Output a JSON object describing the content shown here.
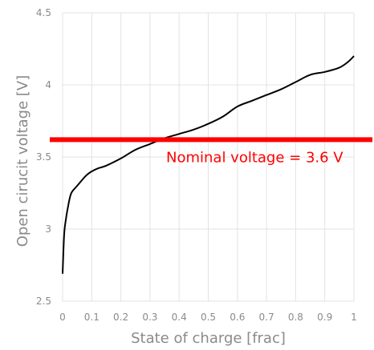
{
  "chart_data": {
    "type": "line",
    "xlabel": "State of charge [frac]",
    "ylabel": "Open cirucit voltage [V]",
    "xlim": [
      0,
      1
    ],
    "ylim": [
      2.5,
      4.5
    ],
    "x_ticks": [
      "0",
      "0.1",
      "0.2",
      "0.3",
      "0.4",
      "0.5",
      "0.6",
      "0.7",
      "0.8",
      "0.9",
      "1"
    ],
    "y_ticks": [
      "2.5",
      "3",
      "3.5",
      "4",
      "4.5"
    ],
    "grid": true,
    "series": [
      {
        "color": "#000000",
        "x": [
          0,
          0.005,
          0.01,
          0.02,
          0.03,
          0.05,
          0.08,
          0.1,
          0.12,
          0.15,
          0.2,
          0.25,
          0.3,
          0.35,
          0.4,
          0.45,
          0.5,
          0.55,
          0.6,
          0.65,
          0.7,
          0.75,
          0.8,
          0.85,
          0.9,
          0.95,
          0.98,
          1.0
        ],
        "y": [
          2.69,
          2.95,
          3.05,
          3.17,
          3.25,
          3.3,
          3.37,
          3.4,
          3.42,
          3.44,
          3.49,
          3.55,
          3.59,
          3.63,
          3.66,
          3.69,
          3.73,
          3.78,
          3.85,
          3.89,
          3.93,
          3.97,
          4.02,
          4.07,
          4.09,
          4.12,
          4.16,
          4.2
        ]
      }
    ],
    "reference_line": {
      "y": 3.62,
      "color": "#ff0000",
      "label": "Nominal voltage = 3.6 V"
    }
  }
}
